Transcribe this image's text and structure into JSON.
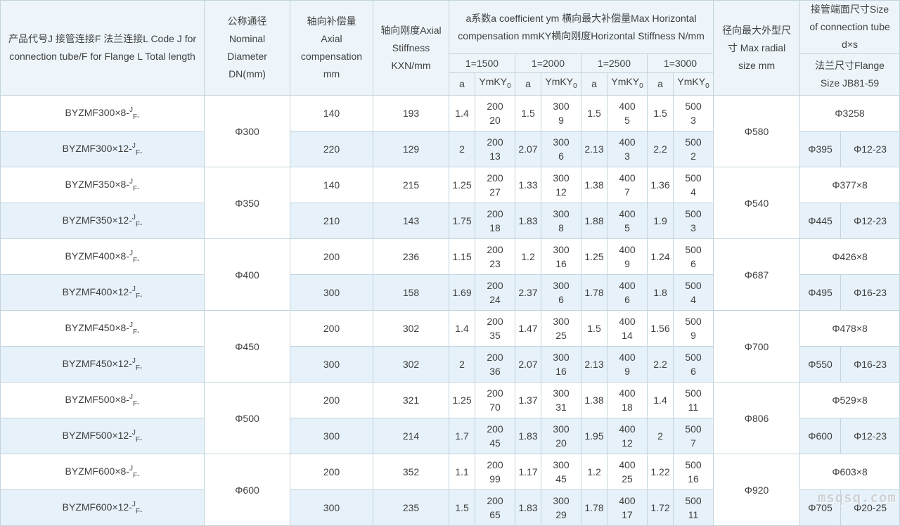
{
  "watermark": "msqsq.com",
  "colors": {
    "border": "#c3d4de",
    "header_bg": "#edf5fa",
    "alt_row_bg": "#e6f1f9",
    "text": "#404040"
  },
  "header": {
    "col_product": "产品代号J 接管连接F 法兰连接L Code J for connection tube/F for Flange L Total length",
    "col_dn": "公称通径Nominal Diameter DN(mm)",
    "col_axial_comp": "轴向补偿量Axial compensation mm",
    "col_axial_stiff": "轴向刚度Axial Stiffness KXN/mm",
    "group_title": "a系数a coefficient ym 横向最大补偿量Max Horizontal compensation mmKY横向刚度Horizontal Stiffness N/mm",
    "sub_groups": [
      "1=1500",
      "1=2000",
      "1=2500",
      "1=3000"
    ],
    "col_a": "a",
    "col_ymky_base": "YmKY",
    "col_ymky_sub": "0",
    "col_radial": "径向最大外型尺寸 Max radial size mm",
    "col_tube": "接管端面尺寸Size of connection tube d×s",
    "col_flange": "法兰尺寸Flange Size JB81-59"
  },
  "code_suffix": {
    "sup": "J",
    "sub": "F-"
  },
  "pairs": [
    {
      "dn": "Φ300",
      "radial": "Φ580",
      "tube_size": "Φ3258",
      "flange_size": "Φ395",
      "bolt_size": "Φ12-23",
      "rows": [
        {
          "code": "BYZMF300×8-",
          "axial_comp": "140",
          "axial_stiff": "193",
          "coeff": [
            [
              "1.4",
              "200",
              "20"
            ],
            [
              "1.5",
              "300",
              "9"
            ],
            [
              "1.5",
              "400",
              "5"
            ],
            [
              "1.5",
              "500",
              "3"
            ]
          ]
        },
        {
          "code": "BYZMF300×12-",
          "axial_comp": "220",
          "axial_stiff": "129",
          "coeff": [
            [
              "2",
              "200",
              "13"
            ],
            [
              "2.07",
              "300",
              "6"
            ],
            [
              "2.13",
              "400",
              "3"
            ],
            [
              "2.2",
              "500",
              "2"
            ]
          ]
        }
      ]
    },
    {
      "dn": "Φ350",
      "radial": "Φ540",
      "tube_size": "Φ377×8",
      "flange_size": "Φ445",
      "bolt_size": "Φ12-23",
      "rows": [
        {
          "code": "BYZMF350×8-",
          "axial_comp": "140",
          "axial_stiff": "215",
          "coeff": [
            [
              "1.25",
              "200",
              "27"
            ],
            [
              "1.33",
              "300",
              "12"
            ],
            [
              "1.38",
              "400",
              "7"
            ],
            [
              "1.36",
              "500",
              "4"
            ]
          ]
        },
        {
          "code": "BYZMF350×12-",
          "axial_comp": "210",
          "axial_stiff": "143",
          "coeff": [
            [
              "1.75",
              "200",
              "18"
            ],
            [
              "1.83",
              "300",
              "8"
            ],
            [
              "1.88",
              "400",
              "5"
            ],
            [
              "1.9",
              "500",
              "3"
            ]
          ]
        }
      ]
    },
    {
      "dn": "Φ400",
      "radial": "Φ687",
      "tube_size": "Φ426×8",
      "flange_size": "Φ495",
      "bolt_size": "Φ16-23",
      "rows": [
        {
          "code": "BYZMF400×8-",
          "axial_comp": "200",
          "axial_stiff": "236",
          "coeff": [
            [
              "1.15",
              "200",
              "23"
            ],
            [
              "1.2",
              "300",
              "16"
            ],
            [
              "1.25",
              "400",
              "9"
            ],
            [
              "1.24",
              "500",
              "6"
            ]
          ]
        },
        {
          "code": "BYZMF400×12-",
          "axial_comp": "300",
          "axial_stiff": "158",
          "coeff": [
            [
              "1.69",
              "200",
              "24"
            ],
            [
              "2.37",
              "300",
              "6"
            ],
            [
              "1.78",
              "400",
              "6"
            ],
            [
              "1.8",
              "500",
              "4"
            ]
          ]
        }
      ]
    },
    {
      "dn": "Φ450",
      "radial": "Φ700",
      "tube_size": "Φ478×8",
      "flange_size": "Φ550",
      "bolt_size": "Φ16-23",
      "rows": [
        {
          "code": "BYZMF450×8-",
          "axial_comp": "200",
          "axial_stiff": "302",
          "coeff": [
            [
              "1.4",
              "200",
              "35"
            ],
            [
              "1.47",
              "300",
              "25"
            ],
            [
              "1.5",
              "400",
              "14"
            ],
            [
              "1.56",
              "500",
              "9"
            ]
          ]
        },
        {
          "code": "BYZMF450×12-",
          "axial_comp": "300",
          "axial_stiff": "302",
          "coeff": [
            [
              "2",
              "200",
              "36"
            ],
            [
              "2.07",
              "300",
              "16"
            ],
            [
              "2.13",
              "400",
              "9"
            ],
            [
              "2.2",
              "500",
              "6"
            ]
          ]
        }
      ]
    },
    {
      "dn": "Φ500",
      "radial": "Φ806",
      "tube_size": "Φ529×8",
      "flange_size": "Φ600",
      "bolt_size": "Φ12-23",
      "rows": [
        {
          "code": "BYZMF500×8-",
          "axial_comp": "200",
          "axial_stiff": "321",
          "coeff": [
            [
              "1.25",
              "200",
              "70"
            ],
            [
              "1.37",
              "300",
              "31"
            ],
            [
              "1.38",
              "400",
              "18"
            ],
            [
              "1.4",
              "500",
              "11"
            ]
          ]
        },
        {
          "code": "BYZMF500×12-",
          "axial_comp": "300",
          "axial_stiff": "214",
          "coeff": [
            [
              "1.7",
              "200",
              "45"
            ],
            [
              "1.83",
              "300",
              "20"
            ],
            [
              "1.95",
              "400",
              "12"
            ],
            [
              "2",
              "500",
              "7"
            ]
          ]
        }
      ]
    },
    {
      "dn": "Φ600",
      "radial": "Φ920",
      "tube_size": "Φ603×8",
      "flange_size": "Φ705",
      "bolt_size": "Φ20-25",
      "rows": [
        {
          "code": "BYZMF600×8-",
          "axial_comp": "200",
          "axial_stiff": "352",
          "coeff": [
            [
              "1.1",
              "200",
              "99"
            ],
            [
              "1.17",
              "300",
              "45"
            ],
            [
              "1.2",
              "400",
              "25"
            ],
            [
              "1.22",
              "500",
              "16"
            ]
          ]
        },
        {
          "code": "BYZMF600×12-",
          "axial_comp": "300",
          "axial_stiff": "235",
          "coeff": [
            [
              "1.5",
              "200",
              "65"
            ],
            [
              "1.83",
              "300",
              "29"
            ],
            [
              "1.78",
              "400",
              "17"
            ],
            [
              "1.72",
              "500",
              "11"
            ]
          ]
        }
      ]
    }
  ]
}
